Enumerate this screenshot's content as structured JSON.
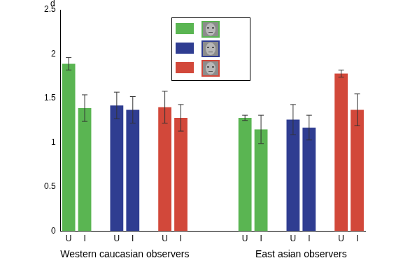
{
  "chart_data": {
    "type": "bar",
    "y_label": "d",
    "categories": [
      "U",
      "I",
      "U",
      "I",
      "U",
      "I",
      "U",
      "I",
      "U",
      "I",
      "U",
      "I"
    ],
    "groups": [
      "Western caucasian observers",
      "East asian observers"
    ],
    "series": [
      {
        "color": "#5ab552",
        "values": [
          1.89,
          1.39,
          null,
          null,
          null,
          null,
          1.28,
          1.15,
          null,
          null,
          null,
          null
        ],
        "errors": [
          0.07,
          0.15,
          null,
          null,
          null,
          null,
          0.03,
          0.16,
          null,
          null,
          null,
          null
        ]
      },
      {
        "color": "#2f3d91",
        "values": [
          null,
          null,
          1.42,
          1.37,
          null,
          null,
          null,
          null,
          1.26,
          1.17,
          null,
          null
        ],
        "errors": [
          null,
          null,
          0.15,
          0.15,
          null,
          null,
          null,
          null,
          0.17,
          0.14,
          null,
          null
        ]
      },
      {
        "color": "#d2483a",
        "values": [
          null,
          null,
          null,
          null,
          1.4,
          1.28,
          null,
          null,
          null,
          null,
          1.78,
          1.37
        ],
        "errors": [
          null,
          null,
          null,
          null,
          0.18,
          0.15,
          null,
          null,
          null,
          null,
          0.04,
          0.18
        ]
      }
    ],
    "ylim": [
      0,
      2.5
    ],
    "yticks": [
      0,
      0.5,
      1,
      1.5,
      2,
      2.5
    ],
    "grid": false,
    "legend": "top"
  }
}
